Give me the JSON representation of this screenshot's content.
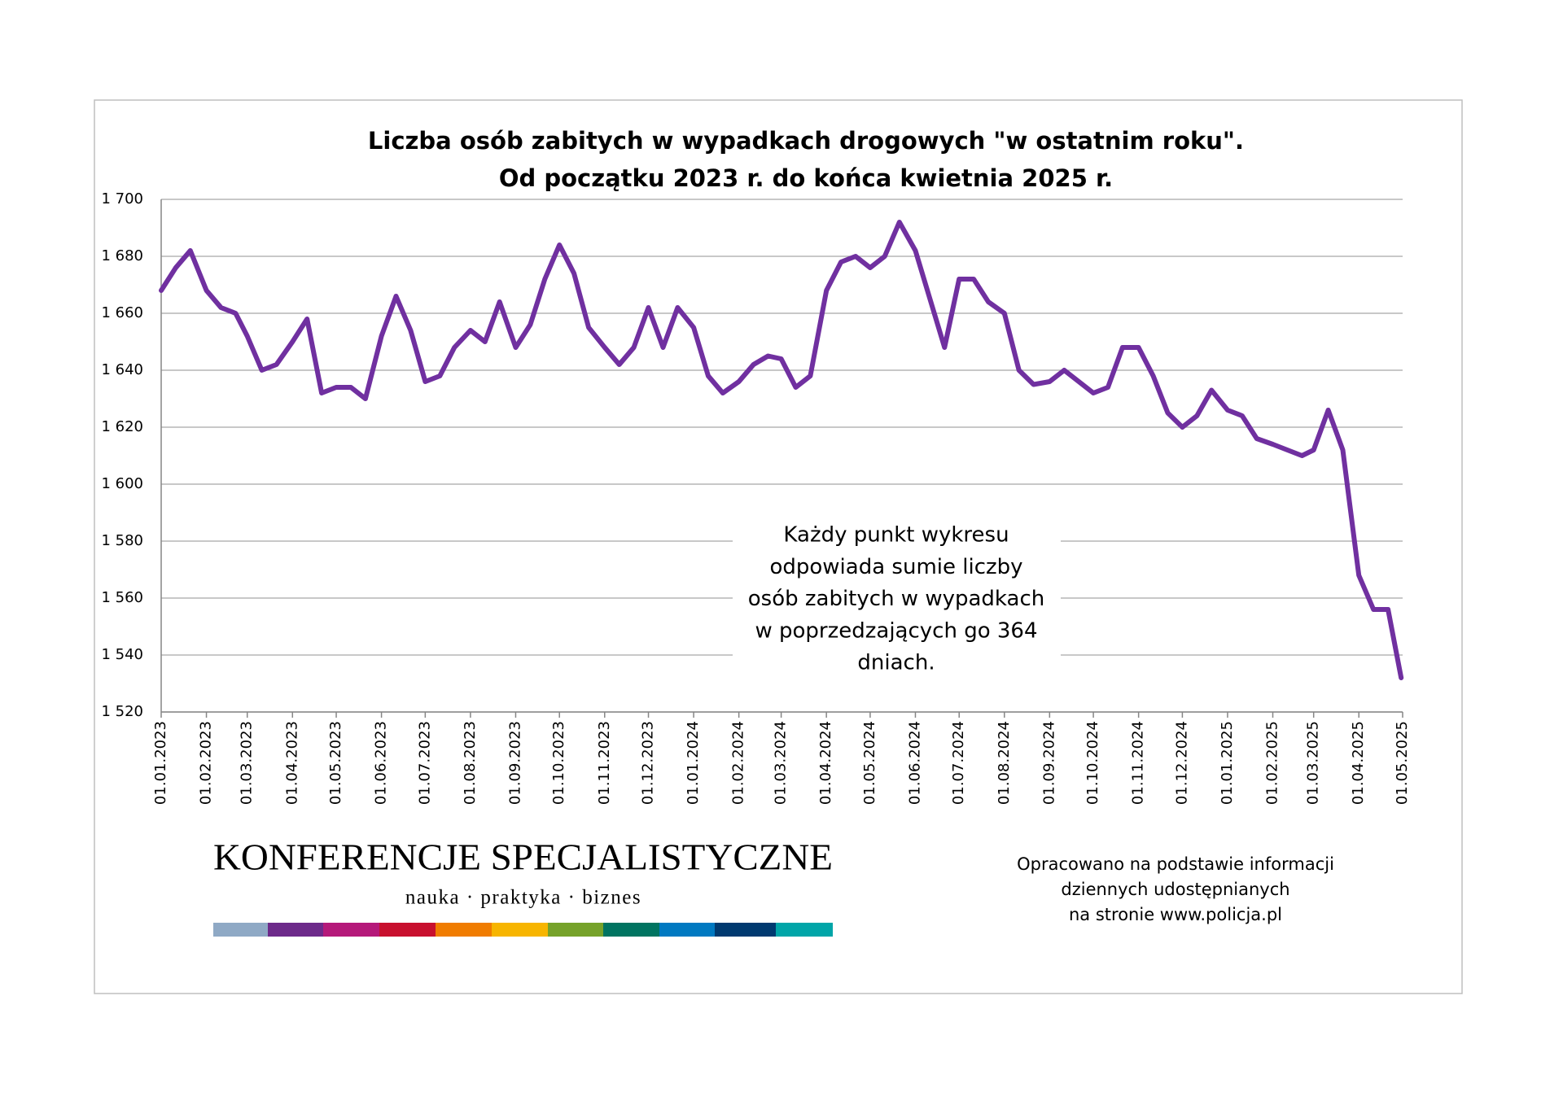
{
  "chart_data": {
    "type": "line",
    "title": "Liczba osób zabitych w wypadkach drogowych \"w ostatnim roku\".",
    "subtitle": "Od początku 2023 r. do końca kwietnia 2025 r.",
    "annotation": [
      "Każdy punkt wykresu",
      "odpowiada sumie liczby",
      "osób zabitych w wypadkach",
      "w poprzedzających go 364",
      "dniach."
    ],
    "logo": {
      "name": "KONFERENCJE SPECJALISTYCZNE",
      "tagline": "nauka · praktyka · biznes"
    },
    "source": [
      "Opracowano na podstawie informacji",
      "dziennych udostępnianych",
      "na stronie www.policja.pl"
    ],
    "grid": true,
    "ylim": [
      1520,
      1700
    ],
    "yticks": [
      {
        "value": 1520,
        "label": "1 520"
      },
      {
        "value": 1540,
        "label": "1 540"
      },
      {
        "value": 1560,
        "label": "1 560"
      },
      {
        "value": 1580,
        "label": "1 580"
      },
      {
        "value": 1600,
        "label": "1 600"
      },
      {
        "value": 1620,
        "label": "1 620"
      },
      {
        "value": 1640,
        "label": "1 640"
      },
      {
        "value": 1660,
        "label": "1 660"
      },
      {
        "value": 1680,
        "label": "1 680"
      },
      {
        "value": 1700,
        "label": "1 700"
      }
    ],
    "xlim": [
      "2023-01-01",
      "2025-05-01"
    ],
    "xticks": [
      {
        "value": "2023-01-01",
        "label": "01.01.2023"
      },
      {
        "value": "2023-02-01",
        "label": "01.02.2023"
      },
      {
        "value": "2023-03-01",
        "label": "01.03.2023"
      },
      {
        "value": "2023-04-01",
        "label": "01.04.2023"
      },
      {
        "value": "2023-05-01",
        "label": "01.05.2023"
      },
      {
        "value": "2023-06-01",
        "label": "01.06.2023"
      },
      {
        "value": "2023-07-01",
        "label": "01.07.2023"
      },
      {
        "value": "2023-08-01",
        "label": "01.08.2023"
      },
      {
        "value": "2023-09-01",
        "label": "01.09.2023"
      },
      {
        "value": "2023-10-01",
        "label": "01.10.2023"
      },
      {
        "value": "2023-11-01",
        "label": "01.11.2023"
      },
      {
        "value": "2023-12-01",
        "label": "01.12.2023"
      },
      {
        "value": "2024-01-01",
        "label": "01.01.2024"
      },
      {
        "value": "2024-02-01",
        "label": "01.02.2024"
      },
      {
        "value": "2024-03-01",
        "label": "01.03.2024"
      },
      {
        "value": "2024-04-01",
        "label": "01.04.2024"
      },
      {
        "value": "2024-05-01",
        "label": "01.05.2024"
      },
      {
        "value": "2024-06-01",
        "label": "01.06.2024"
      },
      {
        "value": "2024-07-01",
        "label": "01.07.2024"
      },
      {
        "value": "2024-08-01",
        "label": "01.08.2024"
      },
      {
        "value": "2024-09-01",
        "label": "01.09.2024"
      },
      {
        "value": "2024-10-01",
        "label": "01.10.2024"
      },
      {
        "value": "2024-11-01",
        "label": "01.11.2024"
      },
      {
        "value": "2024-12-01",
        "label": "01.12.2024"
      },
      {
        "value": "2025-01-01",
        "label": "01.01.2025"
      },
      {
        "value": "2025-02-01",
        "label": "01.02.2025"
      },
      {
        "value": "2025-03-01",
        "label": "01.03.2025"
      },
      {
        "value": "2025-04-01",
        "label": "01.04.2025"
      },
      {
        "value": "2025-05-01",
        "label": "01.05.2025"
      }
    ],
    "x": [
      "2023-01-01",
      "2023-01-11",
      "2023-01-21",
      "2023-02-01",
      "2023-02-11",
      "2023-02-21",
      "2023-03-01",
      "2023-03-11",
      "2023-03-21",
      "2023-04-01",
      "2023-04-11",
      "2023-04-21",
      "2023-05-01",
      "2023-05-11",
      "2023-05-21",
      "2023-06-01",
      "2023-06-11",
      "2023-06-21",
      "2023-07-01",
      "2023-07-11",
      "2023-07-21",
      "2023-08-01",
      "2023-08-11",
      "2023-08-21",
      "2023-09-01",
      "2023-09-11",
      "2023-09-21",
      "2023-10-01",
      "2023-10-11",
      "2023-10-21",
      "2023-11-01",
      "2023-11-11",
      "2023-11-21",
      "2023-12-01",
      "2023-12-11",
      "2023-12-21",
      "2024-01-01",
      "2024-01-11",
      "2024-01-21",
      "2024-02-01",
      "2024-02-11",
      "2024-02-21",
      "2024-03-01",
      "2024-03-11",
      "2024-03-21",
      "2024-04-01",
      "2024-04-11",
      "2024-04-21",
      "2024-05-01",
      "2024-05-11",
      "2024-05-21",
      "2024-06-01",
      "2024-06-11",
      "2024-06-21",
      "2024-07-01",
      "2024-07-11",
      "2024-07-21",
      "2024-08-01",
      "2024-08-11",
      "2024-08-21",
      "2024-09-01",
      "2024-09-11",
      "2024-09-21",
      "2024-10-01",
      "2024-10-11",
      "2024-10-21",
      "2024-11-01",
      "2024-11-11",
      "2024-11-21",
      "2024-12-01",
      "2024-12-11",
      "2024-12-21",
      "2025-01-01",
      "2025-01-11",
      "2025-01-21",
      "2025-02-01",
      "2025-02-11",
      "2025-02-21",
      "2025-03-01",
      "2025-03-11",
      "2025-03-21",
      "2025-04-01",
      "2025-04-11",
      "2025-04-21",
      "2025-04-30"
    ],
    "series": [
      {
        "color": "#7030a0",
        "values": [
          1668,
          1676,
          1682,
          1668,
          1662,
          1660,
          1652,
          1640,
          1642,
          1650,
          1658,
          1632,
          1634,
          1634,
          1630,
          1652,
          1666,
          1654,
          1636,
          1638,
          1648,
          1654,
          1650,
          1664,
          1648,
          1656,
          1672,
          1684,
          1674,
          1655,
          1648,
          1642,
          1648,
          1662,
          1648,
          1662,
          1655,
          1638,
          1632,
          1636,
          1642,
          1645,
          1644,
          1634,
          1638,
          1668,
          1678,
          1680,
          1676,
          1680,
          1692,
          1682,
          1665,
          1648,
          1672,
          1672,
          1664,
          1660,
          1640,
          1635,
          1636,
          1640,
          1636,
          1632,
          1634,
          1648,
          1648,
          1638,
          1625,
          1620,
          1624,
          1633,
          1626,
          1624,
          1616,
          1614,
          1612,
          1610,
          1612,
          1626,
          1612,
          1568,
          1556,
          1556,
          1532
        ]
      }
    ]
  }
}
